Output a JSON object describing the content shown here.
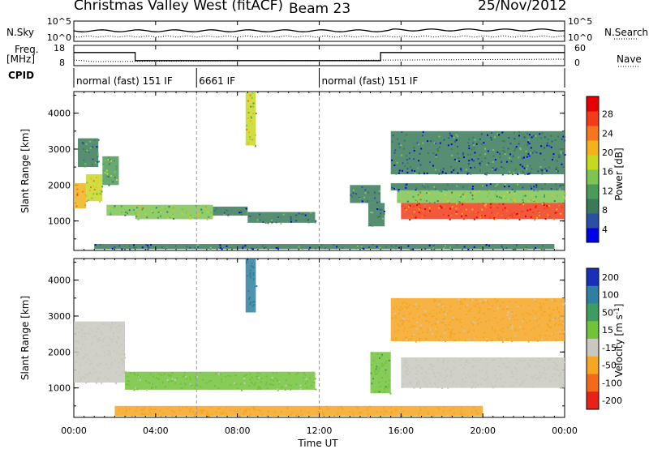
{
  "header": {
    "station": "Christmas Valley West (fitACF)",
    "beam": "Beam 23",
    "date": "25/Nov/2012"
  },
  "top_panels": {
    "nsky_label": "N.Sky",
    "nsky_ticks": [
      "10^5",
      "10^0"
    ],
    "nsearch_label": "N.Search",
    "nsearch_ticks": [
      "10^5",
      "10^0"
    ],
    "freq_label": "Freq.",
    "freq_unit": "[MHz]",
    "freq_ticks": [
      "18",
      "8"
    ],
    "nave_label": "Nave",
    "nave_ticks": [
      "60",
      "0"
    ],
    "cpid_label": "CPID",
    "cpid_segments": [
      {
        "start": 0,
        "end": 6,
        "text": "normal (fast) 151 IF"
      },
      {
        "start": 6,
        "end": 12,
        "text": "6661 IF"
      },
      {
        "start": 12,
        "end": 24,
        "text": "normal (fast) 151 IF"
      }
    ]
  },
  "power_panel": {
    "ylabel": "Slant Range [km]",
    "yticks": [
      "4000",
      "3000",
      "2000",
      "1000"
    ],
    "colorbar_label": "Power [dB]",
    "colorbar_ticks": [
      "28",
      "24",
      "20",
      "16",
      "12",
      "8",
      "4"
    ],
    "colors": [
      "#0000e6",
      "#2b4fa3",
      "#3a7a5a",
      "#4c9a5a",
      "#7dc453",
      "#c8d822",
      "#f3b11e",
      "#f5761e",
      "#f03c1a",
      "#e60000"
    ]
  },
  "velocity_panel": {
    "ylabel": "Slant Range [km]",
    "yticks": [
      "4000",
      "3000",
      "2000",
      "1000"
    ],
    "colorbar_label": "Velocity [m s",
    "colorbar_sup": "-1",
    "colorbar_ticks": [
      "200",
      "100",
      "50",
      "15",
      "-15",
      "-50",
      "-100",
      "-200"
    ],
    "colors": [
      "#1a2fb8",
      "#2f7fa0",
      "#3e9c63",
      "#72c23c",
      "#c8c8c0",
      "#f5a623",
      "#f26b1d",
      "#e62219"
    ]
  },
  "xaxis": {
    "label": "Time UT",
    "ticks": [
      "00:00",
      "04:00",
      "08:00",
      "12:00",
      "16:00",
      "20:00",
      "00:00"
    ]
  },
  "chart_data": {
    "type": "heatmap",
    "title": "Christmas Valley West (fitACF)",
    "subtitle": "Beam 23",
    "date": "25/Nov/2012",
    "xlabel": "Time UT",
    "x_range_hours": [
      0,
      24
    ],
    "ylim": [
      180,
      4600
    ],
    "freq_mhz_segments": [
      {
        "start": 0,
        "end": 3,
        "freq": 14.5
      },
      {
        "start": 3,
        "end": 15,
        "freq": 10.5
      },
      {
        "start": 15,
        "end": 24,
        "freq": 14.5
      }
    ],
    "power_regions": [
      {
        "t0": 0.0,
        "t1": 0.6,
        "r0": 1350,
        "r1": 2050,
        "v": 20
      },
      {
        "t0": 0.6,
        "t1": 1.4,
        "r0": 1550,
        "r1": 2300,
        "v": 18
      },
      {
        "t0": 1.4,
        "t1": 2.2,
        "r0": 2000,
        "r1": 2800,
        "v": 10
      },
      {
        "t0": 0.2,
        "t1": 1.2,
        "r0": 2500,
        "r1": 3300,
        "v": 8
      },
      {
        "t0": 1.6,
        "t1": 3.0,
        "r0": 1150,
        "r1": 1450,
        "v": 12
      },
      {
        "t0": 3.0,
        "t1": 6.8,
        "r0": 1050,
        "r1": 1450,
        "v": 14
      },
      {
        "t0": 6.8,
        "t1": 8.5,
        "r0": 1150,
        "r1": 1400,
        "v": 8
      },
      {
        "t0": 8.5,
        "t1": 11.8,
        "r0": 950,
        "r1": 1250,
        "v": 6
      },
      {
        "t0": 1.0,
        "t1": 23.5,
        "r0": 220,
        "r1": 360,
        "v": 6
      },
      {
        "t0": 14.4,
        "t1": 15.2,
        "r0": 850,
        "r1": 1500,
        "v": 8
      },
      {
        "t0": 13.5,
        "t1": 15.0,
        "r0": 1500,
        "r1": 2000,
        "v": 8
      },
      {
        "t0": 15.5,
        "t1": 24.0,
        "r0": 1850,
        "r1": 2050,
        "v": 6
      },
      {
        "t0": 15.8,
        "t1": 24.0,
        "r0": 1500,
        "r1": 1850,
        "v": 14
      },
      {
        "t0": 16.0,
        "t1": 24.0,
        "r0": 1050,
        "r1": 1500,
        "v": 26
      },
      {
        "t0": 15.5,
        "t1": 24.0,
        "r0": 2300,
        "r1": 3500,
        "v": 6
      },
      {
        "t0": 8.4,
        "t1": 8.9,
        "r0": 3100,
        "r1": 4600,
        "v": 16
      }
    ],
    "velocity_regions": [
      {
        "t0": 0.0,
        "t1": 2.5,
        "r0": 1150,
        "r1": 2850,
        "v": 0
      },
      {
        "t0": 2.5,
        "t1": 11.8,
        "r0": 950,
        "r1": 1450,
        "v": 20
      },
      {
        "t0": 14.5,
        "t1": 15.5,
        "r0": 850,
        "r1": 2000,
        "v": 30
      },
      {
        "t0": 16.0,
        "t1": 24.0,
        "r0": 1000,
        "r1": 1850,
        "v": 0
      },
      {
        "t0": 15.5,
        "t1": 24.0,
        "r0": 2300,
        "r1": 3500,
        "v": -20
      },
      {
        "t0": 2.0,
        "t1": 20.0,
        "r0": 220,
        "r1": 500,
        "v": -40
      },
      {
        "t0": 8.4,
        "t1": 8.9,
        "r0": 3100,
        "r1": 4600,
        "v": 120
      }
    ]
  }
}
